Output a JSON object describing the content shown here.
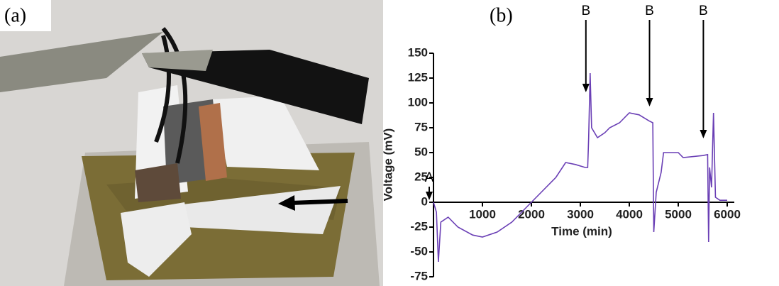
{
  "panel_a": {
    "label": "(a)"
  },
  "chart_data": {
    "type": "line",
    "panel_label": "(b)",
    "x_label": "Time (min)",
    "y_label": "Voltage (mV)",
    "xlim": [
      0,
      6000
    ],
    "xticks": [
      1000,
      2000,
      3000,
      4000,
      5000,
      6000
    ],
    "ylim": [
      -75,
      150
    ],
    "yticks": [
      -75,
      -50,
      -25,
      0,
      25,
      50,
      75,
      100,
      125,
      150
    ],
    "annotations": [
      {
        "text": "A",
        "x": 0
      },
      {
        "text": "B",
        "x": 3200
      },
      {
        "text": "B",
        "x": 4500
      },
      {
        "text": "B",
        "x": 5600
      }
    ],
    "series": [
      {
        "color": "#6a3fb5",
        "x": [
          0,
          60,
          100,
          150,
          300,
          500,
          800,
          1000,
          1300,
          1600,
          1900,
          2200,
          2500,
          2700,
          2900,
          3100,
          3150,
          3170,
          3200,
          3230,
          3350,
          3500,
          3600,
          3800,
          4000,
          4200,
          4400,
          4480,
          4500,
          4550,
          4650,
          4700,
          5000,
          5100,
          5500,
          5600,
          5620,
          5640,
          5680,
          5720,
          5760,
          5850,
          6000
        ],
        "values": [
          0,
          -10,
          -60,
          -20,
          -15,
          -25,
          -33,
          -35,
          -30,
          -20,
          -5,
          10,
          25,
          40,
          38,
          35,
          35,
          65,
          130,
          75,
          65,
          70,
          75,
          80,
          90,
          88,
          82,
          80,
          -30,
          10,
          30,
          50,
          50,
          45,
          47,
          48,
          -40,
          35,
          15,
          90,
          5,
          2,
          2
        ]
      }
    ]
  }
}
